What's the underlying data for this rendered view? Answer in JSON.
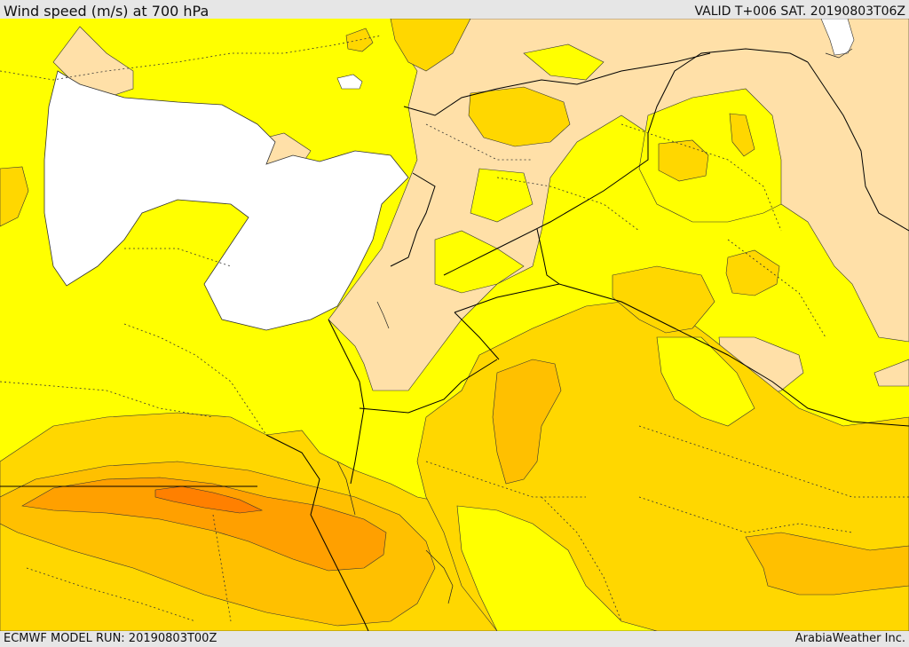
{
  "header": {
    "title": "Wind speed (m/s) at 700 hPa",
    "valid": "VALID T+006 SAT. 20190803T06Z"
  },
  "footer": {
    "model_run": "ECMWF MODEL RUN: 20190803T00Z",
    "brand": "ArabiaWeather Inc."
  },
  "map": {
    "colors": {
      "sea": "#ffffff",
      "calm": "#ffe0a8",
      "light": "#ffff00",
      "moderate": "#ffd700",
      "fresh": "#ffc000",
      "strong": "#ffa000",
      "max": "#ff8000",
      "border": "#000000"
    }
  }
}
